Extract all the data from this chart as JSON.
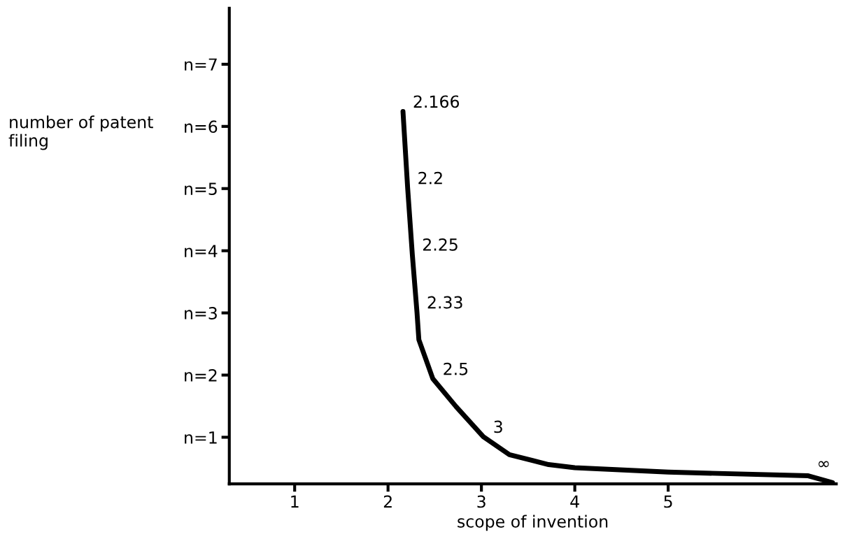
{
  "chart_data": {
    "type": "line",
    "xlabel": "scope of invention",
    "ylabel": "number of patent\nfiling",
    "x": [
      2.16,
      2.21,
      2.26,
      2.31,
      2.33,
      2.48,
      2.73,
      3.02,
      3.3,
      3.72,
      4.0,
      5.0,
      6.5,
      6.76
    ],
    "series": [
      {
        "color": "#000000",
        "values": [
          6.24,
          5.01,
          3.94,
          3.01,
          2.57,
          1.94,
          1.49,
          1.01,
          0.72,
          0.56,
          0.51,
          0.44,
          0.38,
          0.27
        ]
      }
    ],
    "xlim": [
      0.3,
      6.8
    ],
    "ylim": [
      0.25,
      7.9
    ],
    "xticks": [
      1,
      2,
      3,
      4,
      5
    ],
    "yticks": [
      {
        "value": 1,
        "label": "n=1"
      },
      {
        "value": 2,
        "label": "n=2"
      },
      {
        "value": 3,
        "label": "n=3"
      },
      {
        "value": 4,
        "label": "n=4"
      },
      {
        "value": 5,
        "label": "n=5"
      },
      {
        "value": 6,
        "label": "n=6"
      },
      {
        "value": 7,
        "label": "n=7"
      }
    ],
    "grid": false,
    "marker": "none",
    "line_style": "solid",
    "annotations": [
      {
        "text": "2.166",
        "x": 2.16,
        "y": 6.24
      },
      {
        "text": "2.2",
        "x": 2.21,
        "y": 5.01
      },
      {
        "text": "2.25",
        "x": 2.26,
        "y": 3.94
      },
      {
        "text": "2.33",
        "x": 2.31,
        "y": 3.01
      },
      {
        "text": "2.5",
        "x": 2.48,
        "y": 1.94
      },
      {
        "text": "3",
        "x": 3.02,
        "y": 1.01
      },
      {
        "text": "∞",
        "x": 6.76,
        "y": 0.27
      }
    ]
  }
}
